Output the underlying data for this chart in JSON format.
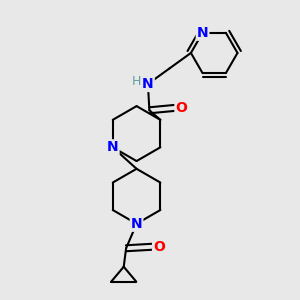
{
  "background_color": "#e8e8e8",
  "bond_color": "#000000",
  "atom_colors": {
    "N": "#0000ff",
    "O": "#ff0000",
    "H": "#5f9ea0",
    "C": "#000000"
  },
  "figsize": [
    3.0,
    3.0
  ],
  "dpi": 100
}
